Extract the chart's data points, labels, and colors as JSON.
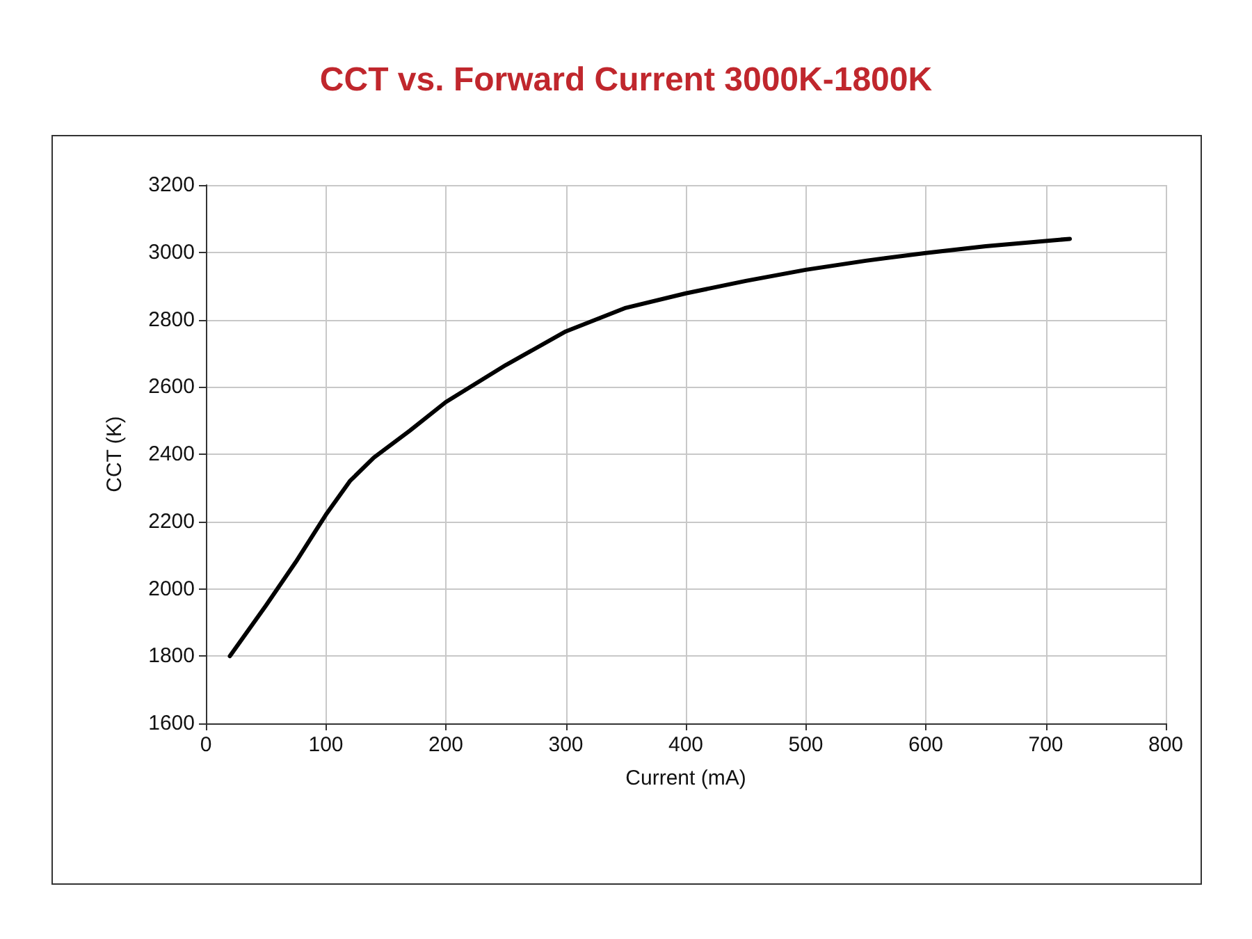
{
  "chart_data": {
    "type": "line",
    "title": "CCT vs. Forward Current 3000K-1800K",
    "xlabel": "Current (mA)",
    "ylabel": "CCT (K)",
    "x": [
      20,
      50,
      75,
      100,
      120,
      140,
      170,
      200,
      250,
      300,
      350,
      400,
      450,
      500,
      550,
      600,
      650,
      720
    ],
    "series": [
      {
        "color": "#000000",
        "values": [
          1800,
          1950,
          2080,
          2220,
          2320,
          2390,
          2470,
          2555,
          2665,
          2765,
          2835,
          2878,
          2915,
          2948,
          2975,
          2998,
          3018,
          3040
        ]
      }
    ],
    "xlim": [
      0,
      800
    ],
    "xticks": [
      0,
      100,
      200,
      300,
      400,
      500,
      600,
      700,
      800
    ],
    "ylim": [
      1600,
      3200
    ],
    "yticks": [
      1600,
      1800,
      2000,
      2200,
      2400,
      2600,
      2800,
      3000,
      3200
    ],
    "grid": true,
    "marker": "none",
    "line_style": "solid"
  }
}
